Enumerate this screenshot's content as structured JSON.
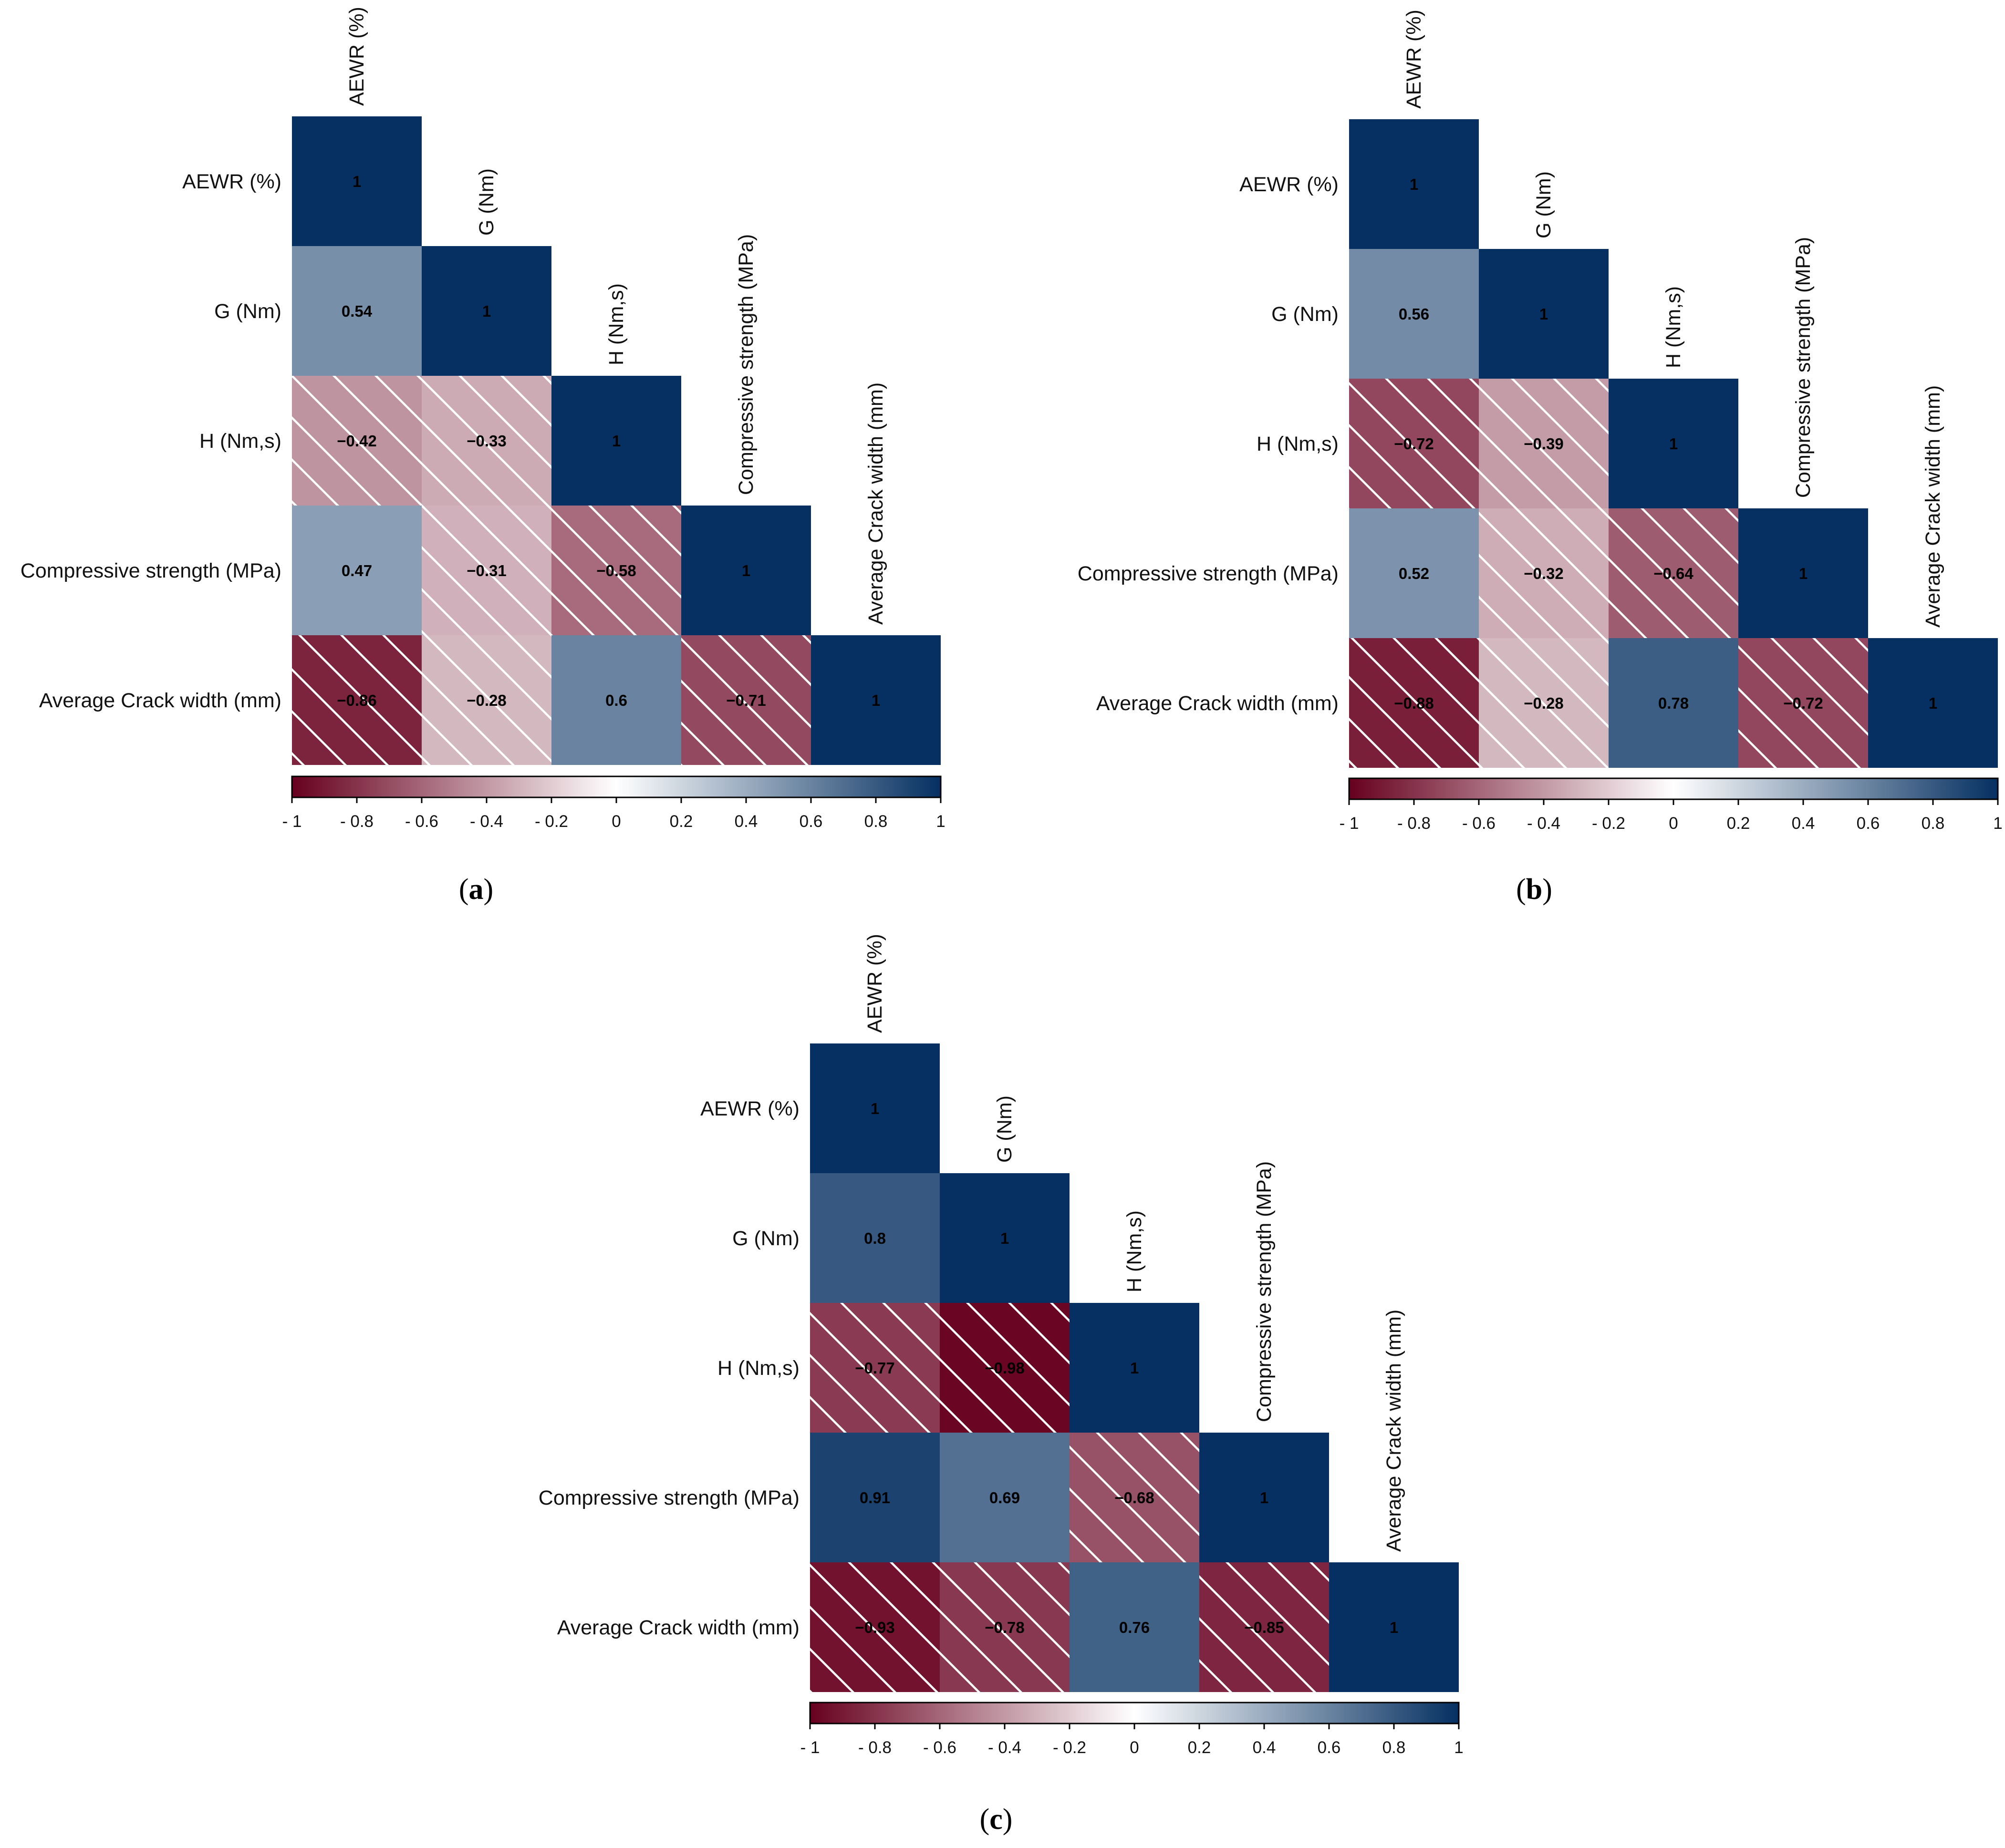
{
  "chart_data": [
    {
      "type": "heatmap",
      "panel_label": "a",
      "variables": [
        "AEWR (%)",
        "G (Nm)",
        "H (Nm,s)",
        "Compressive strength (MPa)",
        "Average Crack width (mm)"
      ],
      "matrix": [
        [
          1
        ],
        [
          0.54,
          1
        ],
        [
          -0.42,
          -0.33,
          1
        ],
        [
          0.47,
          -0.31,
          -0.58,
          1
        ],
        [
          -0.86,
          -0.28,
          0.6,
          -0.71,
          1
        ]
      ],
      "value_labels": [
        [
          "1"
        ],
        [
          "0.54",
          "1"
        ],
        [
          "−0.42",
          "−0.33",
          "1"
        ],
        [
          "0.47",
          "−0.31",
          "−0.58",
          "1"
        ],
        [
          "−0.86",
          "−0.28",
          "0.6",
          "−0.71",
          "1"
        ]
      ],
      "colorbar": {
        "range": [
          -1,
          1
        ],
        "ticks": [
          "- 1",
          "- 0.8",
          "- 0.6",
          "- 0.4",
          "- 0.2",
          "0",
          "0.2",
          "0.4",
          "0.6",
          "0.8",
          "1"
        ]
      },
      "negative_hatch": true
    },
    {
      "type": "heatmap",
      "panel_label": "b",
      "variables": [
        "AEWR (%)",
        "G (Nm)",
        "H (Nm,s)",
        "Compressive strength (MPa)",
        "Average Crack width (mm)"
      ],
      "matrix": [
        [
          1
        ],
        [
          0.56,
          1
        ],
        [
          -0.72,
          -0.39,
          1
        ],
        [
          0.52,
          -0.32,
          -0.64,
          1
        ],
        [
          -0.88,
          -0.28,
          0.78,
          -0.72,
          1
        ]
      ],
      "value_labels": [
        [
          "1"
        ],
        [
          "0.56",
          "1"
        ],
        [
          "−0.72",
          "−0.39",
          "1"
        ],
        [
          "0.52",
          "−0.32",
          "−0.64",
          "1"
        ],
        [
          "−0.88",
          "−0.28",
          "0.78",
          "−0.72",
          "1"
        ]
      ],
      "colorbar": {
        "range": [
          -1,
          1
        ],
        "ticks": [
          "- 1",
          "- 0.8",
          "- 0.6",
          "- 0.4",
          "- 0.2",
          "0",
          "0.2",
          "0.4",
          "0.6",
          "0.8",
          "1"
        ]
      },
      "negative_hatch": true
    },
    {
      "type": "heatmap",
      "panel_label": "c",
      "variables": [
        "AEWR (%)",
        "G (Nm)",
        "H (Nm,s)",
        "Compressive strength (MPa)",
        "Average Crack width (mm)"
      ],
      "matrix": [
        [
          1
        ],
        [
          0.8,
          1
        ],
        [
          -0.77,
          -0.98,
          1
        ],
        [
          0.91,
          0.69,
          -0.68,
          1
        ],
        [
          -0.93,
          -0.78,
          0.76,
          -0.85,
          1
        ]
      ],
      "value_labels": [
        [
          "1"
        ],
        [
          "0.8",
          "1"
        ],
        [
          "−0.77",
          "−0.98",
          "1"
        ],
        [
          "0.91",
          "0.69",
          "−0.68",
          "1"
        ],
        [
          "−0.93",
          "−0.78",
          "0.76",
          "−0.85",
          "1"
        ]
      ],
      "colorbar": {
        "range": [
          -1,
          1
        ],
        "ticks": [
          "- 1",
          "- 0.8",
          "- 0.6",
          "- 0.4",
          "- 0.2",
          "0",
          "0.2",
          "0.4",
          "0.6",
          "0.8",
          "1"
        ]
      },
      "negative_hatch": true
    }
  ],
  "colors": {
    "negative_end": "#67001f",
    "midpoint": "#ffffff",
    "positive_end": "#053061",
    "hatch": "#ffffff",
    "text": "#000000"
  }
}
